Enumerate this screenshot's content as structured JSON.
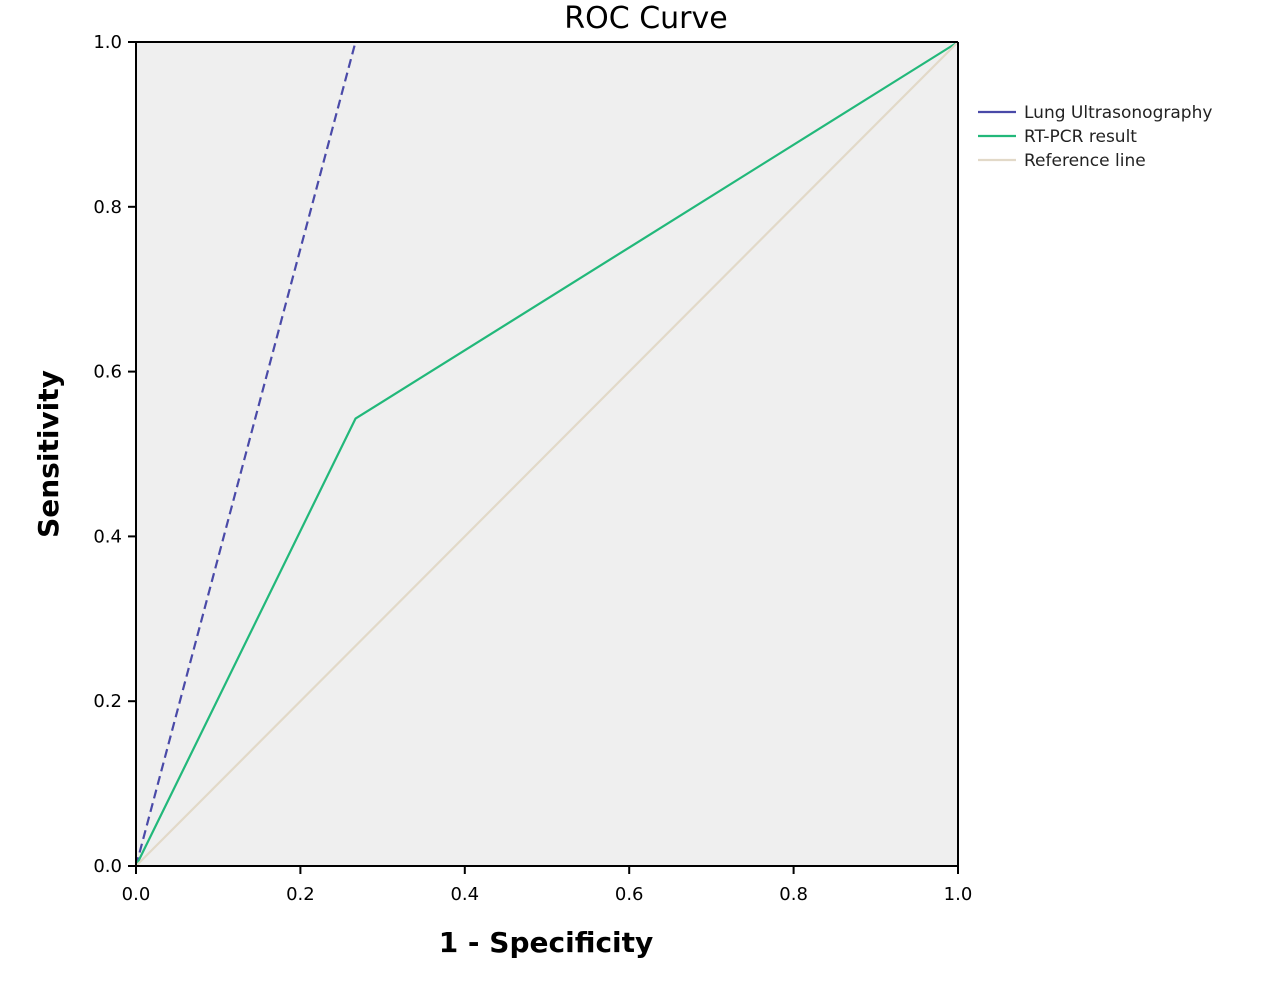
{
  "chart_data": {
    "type": "line",
    "title": "ROC Curve",
    "xlabel": "1 - Specificity",
    "ylabel": "Sensitivity",
    "xlim": [
      0,
      1
    ],
    "ylim": [
      0,
      1
    ],
    "xticks": [
      0.0,
      0.2,
      0.4,
      0.6,
      0.8,
      1.0
    ],
    "yticks": [
      0.0,
      0.2,
      0.4,
      0.6,
      0.8,
      1.0
    ],
    "xtick_labels": [
      "0.0",
      "0.2",
      "0.4",
      "0.6",
      "0.8",
      "1.0"
    ],
    "ytick_labels": [
      "0.0",
      "0.2",
      "0.4",
      "0.6",
      "0.8",
      "1.0"
    ],
    "grid": false,
    "legend_position": "right",
    "series": [
      {
        "name": "Lung Ultrasonography",
        "color": "#4a4aa8",
        "dash": true,
        "points": [
          [
            0.0,
            0.0
          ],
          [
            0.267,
            1.0
          ]
        ]
      },
      {
        "name": "RT-PCR result",
        "color": "#22b87a",
        "dash": false,
        "points": [
          [
            0.0,
            0.0
          ],
          [
            0.267,
            0.543
          ],
          [
            1.0,
            1.0
          ]
        ]
      },
      {
        "name": "Reference line",
        "color": "#e2d9c8",
        "dash": false,
        "points": [
          [
            0.0,
            0.0
          ],
          [
            1.0,
            1.0
          ]
        ]
      }
    ],
    "colors": {
      "plot_background": "#efefef",
      "axis": "#000000"
    }
  }
}
